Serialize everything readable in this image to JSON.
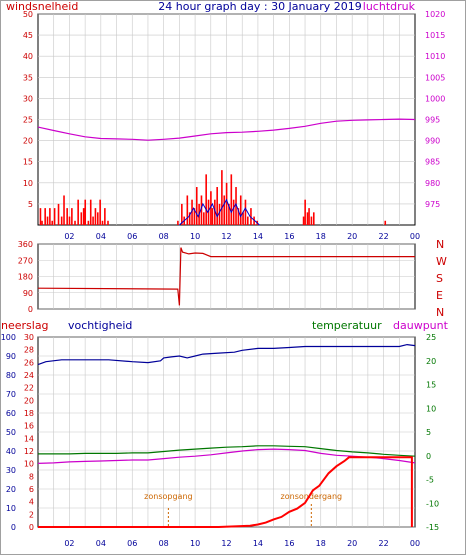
{
  "header": {
    "title": "24 hour graph day : 30 January 2019",
    "left_label": "windsnelheid",
    "right_label": "luchtdruk"
  },
  "colors": {
    "wind": "#ff0000",
    "gust": "#ff0000",
    "wind_avg": "#0000cc",
    "pressure": "#cc00cc",
    "direction": "#cc0000",
    "humidity": "#000099",
    "temperature": "#007700",
    "dewpoint": "#cc00cc",
    "rain": "#ff0000",
    "sun": "#cc6600",
    "frame": "#000000",
    "grid": "#c8c8c8"
  },
  "chart_data": [
    {
      "type": "line",
      "id": "wind_pressure",
      "title": "24 hour graph day : 30 January 2019",
      "ylabel_left": "windsnelheid",
      "ylabel_right": "luchtdruk",
      "x_ticks": [
        "02",
        "04",
        "06",
        "08",
        "10",
        "12",
        "14",
        "16",
        "18",
        "20",
        "22",
        "00"
      ],
      "ylim_left": [
        0,
        50
      ],
      "yticks_left": [
        5,
        10,
        15,
        20,
        25,
        30,
        35,
        40,
        45,
        50
      ],
      "ylim_right": [
        970,
        1020
      ],
      "yticks_right": [
        975,
        980,
        985,
        990,
        995,
        1000,
        1005,
        1010,
        1015,
        1020
      ],
      "grid": true,
      "series": [
        {
          "name": "luchtdruk",
          "axis": "right",
          "x": [
            0,
            1,
            2,
            3,
            4,
            5,
            6,
            7,
            8,
            9,
            10,
            11,
            12,
            13,
            14,
            15,
            16,
            17,
            18,
            19,
            20,
            21,
            22,
            23,
            24
          ],
          "values": [
            993.2,
            992.4,
            991.6,
            990.9,
            990.5,
            990.4,
            990.3,
            990.1,
            990.3,
            990.6,
            991.1,
            991.6,
            991.9,
            992.0,
            992.2,
            992.5,
            992.9,
            993.4,
            994.1,
            994.6,
            994.8,
            994.9,
            995.0,
            995.1,
            995.0
          ]
        },
        {
          "name": "windstoten",
          "axis": "left",
          "bars": [
            [
              0.15,
              4
            ],
            [
              0.25,
              1
            ],
            [
              0.45,
              4
            ],
            [
              0.6,
              2
            ],
            [
              0.75,
              4
            ],
            [
              0.9,
              1
            ],
            [
              1.05,
              4
            ],
            [
              1.3,
              5
            ],
            [
              1.5,
              2
            ],
            [
              1.65,
              7
            ],
            [
              1.85,
              4
            ],
            [
              2.0,
              2
            ],
            [
              2.15,
              4
            ],
            [
              2.35,
              1
            ],
            [
              2.55,
              6
            ],
            [
              2.75,
              3
            ],
            [
              2.9,
              4
            ],
            [
              3.0,
              6
            ],
            [
              3.2,
              1
            ],
            [
              3.35,
              6
            ],
            [
              3.5,
              2
            ],
            [
              3.65,
              4
            ],
            [
              3.8,
              3
            ],
            [
              3.95,
              6
            ],
            [
              4.1,
              1
            ],
            [
              4.25,
              4
            ],
            [
              4.45,
              1
            ],
            [
              8.9,
              1
            ],
            [
              9.15,
              5
            ],
            [
              9.3,
              2
            ],
            [
              9.5,
              7
            ],
            [
              9.65,
              3
            ],
            [
              9.8,
              6
            ],
            [
              9.95,
              4
            ],
            [
              10.1,
              9
            ],
            [
              10.25,
              5
            ],
            [
              10.4,
              7
            ],
            [
              10.55,
              3
            ],
            [
              10.7,
              12
            ],
            [
              10.85,
              6
            ],
            [
              11.0,
              8
            ],
            [
              11.1,
              4
            ],
            [
              11.25,
              6
            ],
            [
              11.4,
              9
            ],
            [
              11.55,
              5
            ],
            [
              11.7,
              13
            ],
            [
              11.85,
              7
            ],
            [
              12.0,
              10
            ],
            [
              12.15,
              5
            ],
            [
              12.3,
              12
            ],
            [
              12.45,
              6
            ],
            [
              12.6,
              9
            ],
            [
              12.75,
              4
            ],
            [
              12.9,
              7
            ],
            [
              13.05,
              3
            ],
            [
              13.2,
              6
            ],
            [
              13.35,
              2
            ],
            [
              13.55,
              4
            ],
            [
              13.75,
              2
            ],
            [
              13.95,
              1
            ],
            [
              16.9,
              2
            ],
            [
              17.0,
              6
            ],
            [
              17.15,
              3
            ],
            [
              17.25,
              4
            ],
            [
              17.4,
              2
            ],
            [
              17.55,
              3
            ],
            [
              22.1,
              1
            ]
          ]
        },
        {
          "name": "gemiddeld",
          "axis": "left",
          "x": [
            9.0,
            9.3,
            9.6,
            9.9,
            10.2,
            10.5,
            10.8,
            11.1,
            11.4,
            11.7,
            12.0,
            12.3,
            12.6,
            12.9,
            13.2,
            13.5,
            13.8,
            14.1
          ],
          "values": [
            0,
            1,
            2,
            4,
            2,
            5,
            3,
            5,
            2,
            4,
            6,
            3,
            5,
            2,
            4,
            2,
            1,
            0
          ]
        }
      ]
    },
    {
      "type": "line",
      "id": "wind_direction",
      "ylabel_right": [
        "N",
        "W",
        "S",
        "E",
        "N"
      ],
      "yticks_left": [
        0,
        90,
        180,
        270,
        360
      ],
      "ylim": [
        0,
        360
      ],
      "grid": true,
      "series": [
        {
          "name": "windrichting",
          "x": [
            0,
            8.9,
            9.0,
            9.1,
            9.2,
            9.6,
            10.0,
            10.5,
            11.0,
            11.5,
            12.0,
            24
          ],
          "values": [
            115,
            110,
            20,
            340,
            315,
            305,
            310,
            308,
            290,
            290,
            290,
            290
          ]
        }
      ]
    },
    {
      "type": "line",
      "id": "humidity_temp_rain",
      "labels": {
        "rain": "neerslag",
        "humidity": "vochtigheid",
        "temperature": "temperatuur",
        "dewpoint": "dauwpunt",
        "sunrise": "zonsopgang",
        "sunset": "zonsondergang"
      },
      "x_ticks": [
        "02",
        "04",
        "06",
        "08",
        "10",
        "12",
        "14",
        "16",
        "18",
        "20",
        "22",
        "00"
      ],
      "axis_humidity": [
        0,
        10,
        20,
        30,
        40,
        50,
        60,
        70,
        80,
        90,
        100
      ],
      "axis_rain": [
        0,
        2,
        4,
        6,
        8,
        10,
        12,
        14,
        16,
        18,
        20,
        22,
        24,
        26,
        28,
        30
      ],
      "axis_temp": [
        -15,
        -10,
        -5,
        0,
        5,
        10,
        15,
        20,
        25
      ],
      "ylim_humidity": [
        0,
        100
      ],
      "ylim_temp": [
        -15,
        25
      ],
      "sunrise": 8.3,
      "sunset": 17.4,
      "grid": true,
      "series": [
        {
          "name": "vochtigheid",
          "axis": "humidity",
          "x": [
            0,
            0.5,
            1.5,
            3.0,
            4.5,
            6.0,
            7.0,
            7.8,
            8.0,
            8.5,
            9.0,
            9.5,
            10.0,
            10.5,
            11.5,
            12.5,
            13.0,
            14.0,
            15.0,
            16.0,
            17.0,
            18.0,
            19.0,
            20.0,
            21.0,
            22.0,
            23.0,
            23.5,
            24
          ],
          "values": [
            85.5,
            87,
            88,
            88,
            88,
            87,
            86.5,
            87.5,
            89,
            89.5,
            90,
            89,
            90,
            91,
            91.5,
            92,
            93,
            94,
            94,
            94.5,
            95,
            95,
            95,
            95,
            95,
            95,
            95,
            96,
            95.5
          ]
        },
        {
          "name": "temperatuur",
          "axis": "temp",
          "x": [
            0,
            1,
            2,
            3,
            4,
            5,
            6,
            7,
            8,
            9,
            10,
            11,
            12,
            13,
            14,
            15,
            16,
            17,
            18,
            19,
            20,
            21,
            22,
            23,
            24
          ],
          "values": [
            0.4,
            0.4,
            0.4,
            0.5,
            0.5,
            0.5,
            0.6,
            0.6,
            0.9,
            1.2,
            1.4,
            1.6,
            1.8,
            1.9,
            2.1,
            2.1,
            2.0,
            1.9,
            1.5,
            1.1,
            0.8,
            0.6,
            0.3,
            0.1,
            -0.1
          ]
        },
        {
          "name": "dauwpunt",
          "axis": "temp",
          "x": [
            0,
            1,
            2,
            3,
            4,
            5,
            6,
            7,
            8,
            9,
            10,
            11,
            12,
            13,
            14,
            15,
            16,
            17,
            18,
            19,
            20,
            21,
            22,
            23,
            24
          ],
          "values": [
            -1.6,
            -1.5,
            -1.3,
            -1.2,
            -1.1,
            -1.0,
            -0.9,
            -0.9,
            -0.6,
            -0.3,
            -0.1,
            0.2,
            0.6,
            1.0,
            1.3,
            1.4,
            1.3,
            1.1,
            0.5,
            0.1,
            -0.1,
            -0.3,
            -0.6,
            -1.0,
            -1.5
          ]
        },
        {
          "name": "neerslag",
          "axis": "rain",
          "x": [
            0,
            11.5,
            12.5,
            13.5,
            14.0,
            14.5,
            15.0,
            15.5,
            16.0,
            16.5,
            17.0,
            17.5,
            17.9,
            18.5,
            19.0,
            19.5,
            19.8,
            20.0,
            23.8,
            23.8
          ],
          "values": [
            0,
            0,
            0.1,
            0.2,
            0.4,
            0.7,
            1.2,
            1.6,
            2.4,
            2.9,
            3.8,
            5.8,
            6.5,
            8.5,
            9.6,
            10.4,
            11.0,
            11.0,
            11.0,
            0
          ]
        }
      ]
    }
  ]
}
